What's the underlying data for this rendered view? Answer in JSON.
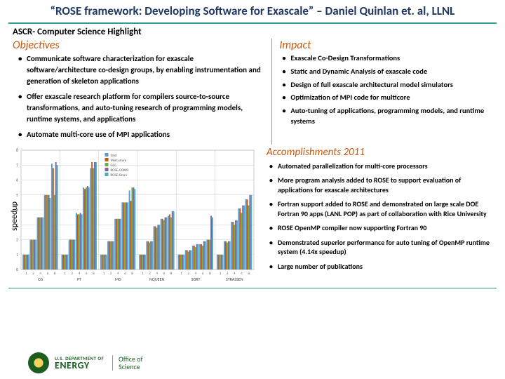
{
  "title": "“ROSE framework: Developing Software for Exascale” – Daniel Quinlan et. al, LLNL",
  "subtitle": "ASCR- Computer Science Highlight",
  "objectives": {
    "heading": "Objectives",
    "items": [
      "Communicate software  characterization for exascale software/architecture co-design groups, by enabling instrumentation and generation of skeleton applications",
      "Offer exascale research platform for compilers source-to-source transformations, and auto-tuning research of programming models, runtime systems, and applications",
      "Automate multi-core use of MPI applications"
    ]
  },
  "impact": {
    "heading": "Impact",
    "items": [
      "Exascale Co-Design Transformations",
      "Static and Dynamic Analysis of exascale code",
      "Design of  full  exascale architectural model simulators",
      "Optimization of MPI code for multicore",
      "Auto-tuning of applications, programming models, and runtime systems"
    ]
  },
  "accomplishments": {
    "heading": "Accomplishments 2011",
    "items": [
      "Automated parallelization for multi-core processors",
      "More program analysis added to ROSE to support evaluation of applications for exascale architectures",
      "Fortran support added to ROSE and demonstrated on large scale DOE Fortran 90 apps (LANL POP) as part of collaboration with Rice University",
      "ROSE OpenMP compiler now supporting Fortran 90",
      "Demonstrated superior performance for auto tuning  of OpenMP runtime system (4.14x speedup)",
      "Large number of publications"
    ]
  },
  "chart": {
    "type": "bar",
    "ylabel": "speedup",
    "ylim": [
      0,
      8
    ],
    "ytick_step": 1,
    "background_color": "#ffffff",
    "grid_color": "#d0d0d0",
    "series": [
      {
        "name": "Intel",
        "color": "#5b9bd5"
      },
      {
        "name": "Mercurium",
        "color": "#c55a11"
      },
      {
        "name": "GCC",
        "color": "#70ad47"
      },
      {
        "name": "ROSE-GOMP",
        "color": "#8064a2"
      },
      {
        "name": "ROSE-Omni",
        "color": "#4bacc6"
      }
    ],
    "groups": [
      "CG",
      "FT",
      "MG",
      "NQUEEN",
      "SORT",
      "STRASSEN"
    ],
    "sub_x": [
      "1",
      "2",
      "4",
      "6",
      "8"
    ],
    "data": [
      [
        [
          1.0,
          1.0,
          1.0,
          1.0,
          1.0
        ],
        [
          2.0,
          2.0,
          2.0,
          2.0,
          2.0
        ],
        [
          3.5,
          3.5,
          3.5,
          3.5,
          3.5
        ],
        [
          5.0,
          5.0,
          5.0,
          5.0,
          4.8
        ],
        [
          7.1,
          6.8,
          5.0,
          7.2,
          7.0
        ]
      ],
      [
        [
          1.0,
          1.0,
          1.0,
          1.0,
          1.0
        ],
        [
          2.0,
          2.0,
          2.0,
          2.0,
          2.0
        ],
        [
          3.8,
          3.7,
          3.7,
          3.8,
          3.7
        ],
        [
          5.5,
          5.4,
          5.5,
          5.6,
          5.5
        ],
        [
          6.8,
          7.2,
          6.8,
          7.2,
          7.2
        ]
      ],
      [
        [
          1.0,
          1.0,
          1.0,
          1.0,
          1.0
        ],
        [
          1.9,
          1.9,
          1.9,
          1.9,
          1.9
        ],
        [
          3.4,
          3.4,
          3.4,
          3.4,
          3.4
        ],
        [
          4.5,
          4.5,
          4.5,
          4.5,
          4.5
        ],
        [
          5.3,
          4.6,
          5.5,
          5.5,
          5.4
        ]
      ],
      [
        [
          1.0,
          1.0,
          1.0,
          1.0,
          1.0
        ],
        [
          1.9,
          1.9,
          1.8,
          1.9,
          1.9
        ],
        [
          2.9,
          2.9,
          2.8,
          3.0,
          3.0
        ],
        [
          3.4,
          3.4,
          3.3,
          3.5,
          3.5
        ],
        [
          3.6,
          3.7,
          3.5,
          3.9,
          3.9
        ]
      ],
      [
        [
          1.0,
          1.0,
          1.0,
          1.0,
          1.0
        ],
        [
          1.3,
          1.3,
          1.2,
          1.3,
          1.3
        ],
        [
          1.6,
          1.6,
          1.5,
          1.7,
          1.7
        ],
        [
          1.7,
          1.7,
          1.6,
          1.9,
          1.9
        ],
        [
          2.0,
          2.0,
          2.0,
          3.6,
          3.5
        ]
      ],
      [
        [
          1.0,
          1.0,
          1.0,
          1.0,
          1.0
        ],
        [
          1.9,
          1.9,
          1.8,
          1.9,
          1.9
        ],
        [
          3.2,
          3.2,
          3.0,
          3.3,
          3.3
        ],
        [
          4.1,
          4.1,
          3.8,
          4.3,
          4.3
        ],
        [
          4.7,
          4.7,
          4.3,
          5.0,
          5.0
        ]
      ]
    ]
  },
  "footer": {
    "dept": "U.S. DEPARTMENT OF",
    "energy": "ENERGY",
    "office1": "Office of",
    "office2": "Science"
  }
}
